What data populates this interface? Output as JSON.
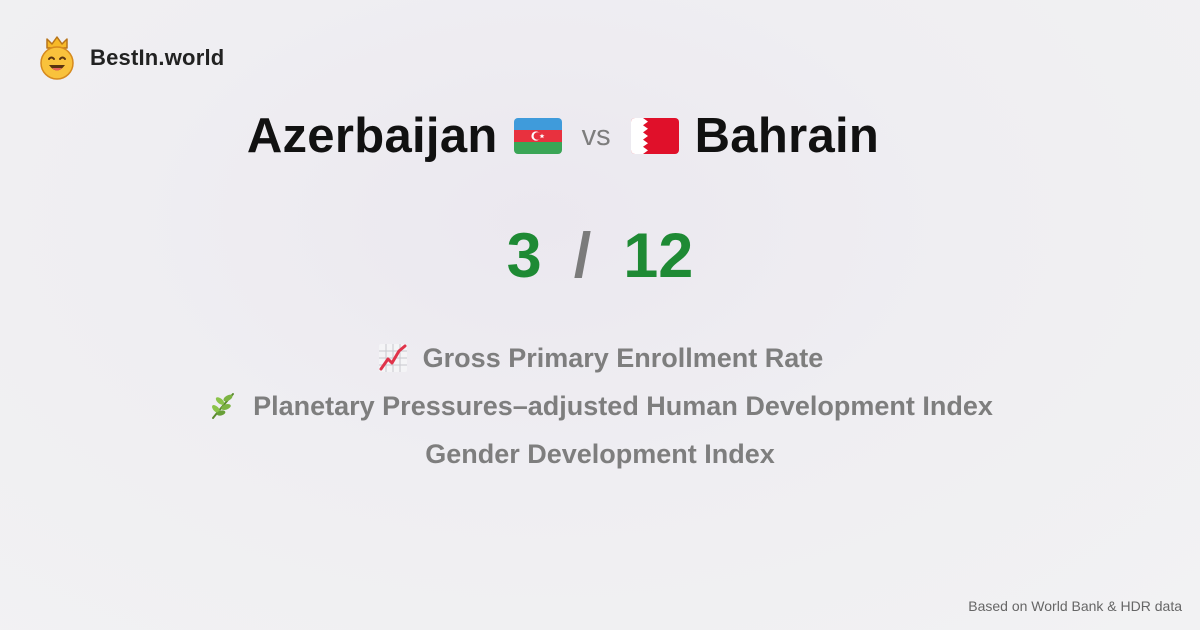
{
  "brand": {
    "logo_icon": "smiling-crown-face-icon",
    "name": "BestIn.world"
  },
  "comparison": {
    "left": {
      "name": "Azerbaijan",
      "flag_icon": "azerbaijan-flag-icon"
    },
    "vs_label": "vs",
    "right": {
      "name": "Bahrain",
      "flag_icon": "bahrain-flag-icon"
    }
  },
  "score": {
    "left": "3",
    "separator": "/",
    "right": "12",
    "color": "#1e8a34"
  },
  "metrics": [
    {
      "icon": "chart-increasing-icon",
      "label": "Gross Primary Enrollment Rate"
    },
    {
      "icon": "herb-leaf-icon",
      "label": "Planetary Pressures–adjusted Human Development Index"
    },
    {
      "icon": "",
      "label": "Gender Development Index"
    }
  ],
  "footer": {
    "source": "Based on World Bank & HDR data"
  },
  "colors": {
    "azerbaijan_blue": "#3f9bdb",
    "azerbaijan_red": "#e8313e",
    "azerbaijan_green": "#3aa556",
    "bahrain_red": "#e0102a"
  }
}
